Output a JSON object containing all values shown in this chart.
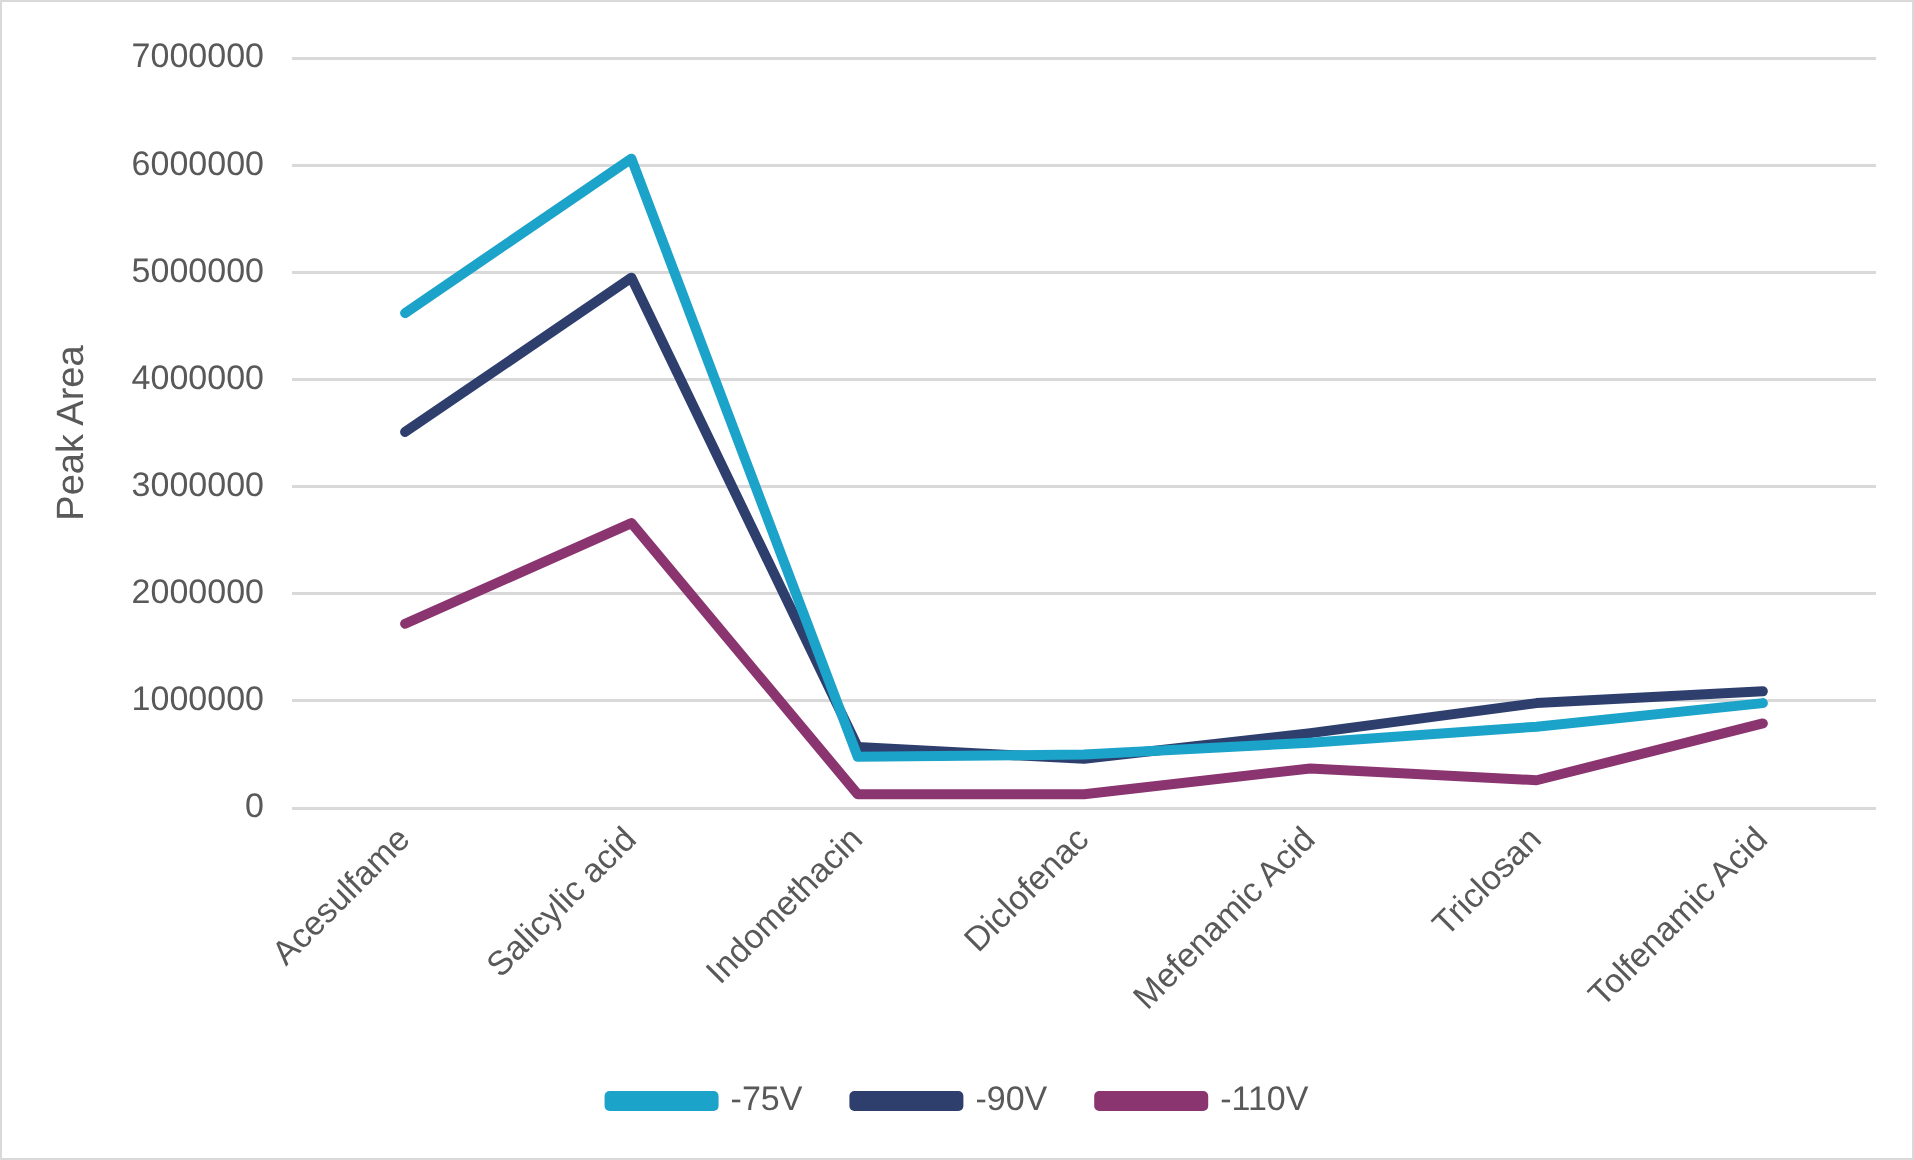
{
  "chart_data": {
    "type": "line",
    "ylabel": "Peak Area",
    "categories": [
      "Acesulfame",
      "Salicylic acid",
      "Indomethacin",
      "Diclofenac",
      "Mefenamic Acid",
      "Triclosan",
      "Tolfenamic Acid"
    ],
    "series": [
      {
        "name": "-75V",
        "color": "#1ba3c9",
        "values": [
          4620000,
          6060000,
          480000,
          500000,
          610000,
          760000,
          980000
        ]
      },
      {
        "name": "-90V",
        "color": "#2e3f6e",
        "values": [
          3510000,
          4950000,
          570000,
          460000,
          700000,
          980000,
          1090000
        ]
      },
      {
        "name": "-110V",
        "color": "#8a3570",
        "values": [
          1720000,
          2660000,
          130000,
          130000,
          370000,
          260000,
          790000
        ]
      }
    ],
    "ylim": [
      0,
      7000000
    ],
    "yticks": [
      0,
      1000000,
      2000000,
      3000000,
      4000000,
      5000000,
      6000000,
      7000000
    ],
    "grid": "y",
    "legend": "bottom",
    "marker": "none",
    "line_style": "solid"
  }
}
